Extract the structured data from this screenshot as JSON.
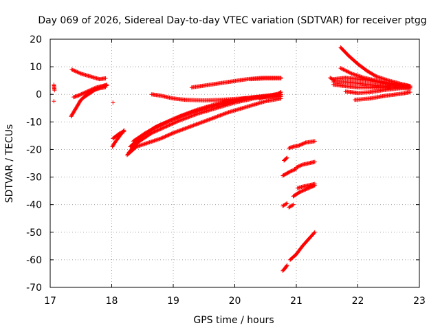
{
  "chart_data": {
    "type": "scatter",
    "title": "Day 069 of 2026, Sidereal Day-to-day VTEC variation (SDTVAR) for receiver ptgg",
    "xlabel": "GPS time / hours",
    "ylabel": "SDTVAR / TECUs",
    "xlim": [
      17,
      23
    ],
    "ylim": [
      -70,
      20
    ],
    "xticks": [
      "17",
      "18",
      "19",
      "20",
      "21",
      "22",
      "23"
    ],
    "yticks": [
      "20",
      "10",
      "0",
      "-10",
      "-20",
      "-30",
      "-40",
      "-50",
      "-60",
      "-70"
    ],
    "grid": true,
    "marker": "+",
    "color": "#ff0000",
    "segments": [
      {
        "x": [
          17.06,
          17.07
        ],
        "y": [
          3.5,
          1.5
        ]
      },
      {
        "x": [
          17.06
        ],
        "y": [
          -2.5
        ]
      },
      {
        "x": [
          17.35,
          17.5,
          17.65,
          17.8,
          17.9
        ],
        "y": [
          9,
          7.5,
          6.5,
          5.5,
          5.8
        ]
      },
      {
        "x": [
          17.34,
          17.42,
          17.5,
          17.6,
          17.7,
          17.8,
          17.9
        ],
        "y": [
          -8,
          -5,
          -2,
          0,
          1.5,
          2.2,
          2.6
        ]
      },
      {
        "x": [
          17.38,
          17.45,
          17.55,
          17.65,
          17.75,
          17.85,
          17.92
        ],
        "y": [
          -1,
          -0.5,
          0.5,
          1.5,
          2.5,
          3.0,
          3.5
        ]
      },
      {
        "x": [
          17.55,
          17.65,
          17.75,
          17.85,
          17.92
        ],
        "y": [
          -1,
          0.5,
          2,
          3,
          3.2
        ]
      },
      {
        "x": [
          18.02
        ],
        "y": [
          -3
        ]
      },
      {
        "x": [
          18.01,
          18.05,
          18.1,
          18.15,
          18.2
        ],
        "y": [
          -19,
          -17.5,
          -16,
          -14.5,
          -13
        ]
      },
      {
        "x": [
          18.02,
          18.08,
          18.14,
          18.2
        ],
        "y": [
          -16,
          -15,
          -14,
          -13.5
        ]
      },
      {
        "x": [
          18.25,
          18.4,
          18.6,
          18.8,
          19.0,
          19.3,
          19.6,
          19.9,
          20.2,
          20.5,
          20.75
        ],
        "y": [
          -22,
          -19,
          -17.5,
          -16,
          -14,
          -11.5,
          -9,
          -6.5,
          -4.5,
          -2.5,
          -1.5
        ]
      },
      {
        "x": [
          18.28,
          18.45,
          18.65,
          18.85,
          19.1,
          19.4,
          19.7,
          20.0,
          20.3,
          20.6,
          20.75
        ],
        "y": [
          -21,
          -17,
          -14,
          -12,
          -9.5,
          -7,
          -5,
          -3,
          -1.5,
          -0.5,
          0
        ]
      },
      {
        "x": [
          18.3,
          18.5,
          18.7,
          18.9,
          19.1,
          19.4,
          19.7,
          20.0,
          20.3,
          20.6,
          20.75
        ],
        "y": [
          -19,
          -15,
          -12,
          -10,
          -8,
          -5.5,
          -3.5,
          -2,
          -1,
          -0.5,
          -0.2
        ]
      },
      {
        "x": [
          18.35,
          18.55,
          18.75,
          19.0,
          19.3,
          19.6,
          19.9,
          20.2,
          20.5,
          20.75
        ],
        "y": [
          -17,
          -14,
          -11.5,
          -9,
          -6.5,
          -4.5,
          -3,
          -1.5,
          -0.5,
          0
        ]
      },
      {
        "x": [
          18.65,
          18.8,
          19.0,
          19.2,
          19.5,
          19.8,
          20.1,
          20.4,
          20.75
        ],
        "y": [
          0,
          -0.5,
          -1.5,
          -2,
          -2.2,
          -2,
          -1.5,
          -1,
          -0.8
        ]
      },
      {
        "x": [
          19.3,
          19.6,
          19.9,
          20.2,
          20.45,
          20.75
        ],
        "y": [
          2.5,
          3.5,
          4.5,
          5.5,
          6,
          6
        ]
      },
      {
        "x": [
          20.25,
          20.5,
          20.75
        ],
        "y": [
          5.5,
          5.8,
          5.8
        ]
      },
      {
        "x": [
          20.4,
          20.55,
          20.7,
          20.75
        ],
        "y": [
          -1.5,
          -0.5,
          0.2,
          0.8
        ]
      },
      {
        "x": [
          20.78,
          20.82,
          20.85
        ],
        "y": [
          -64,
          -63,
          -62
        ]
      },
      {
        "x": [
          20.9,
          21.0,
          21.1,
          21.2,
          21.3
        ],
        "y": [
          -60,
          -58,
          -55,
          -52.5,
          -50
        ]
      },
      {
        "x": [
          20.78,
          20.85
        ],
        "y": [
          -40.5,
          -39.5
        ]
      },
      {
        "x": [
          20.88,
          20.95
        ],
        "y": [
          -41,
          -40
        ]
      },
      {
        "x": [
          20.95,
          21.05,
          21.15,
          21.25,
          21.3
        ],
        "y": [
          -37,
          -35.5,
          -34.5,
          -33.5,
          -33
        ]
      },
      {
        "x": [
          21.02,
          21.1,
          21.2,
          21.3
        ],
        "y": [
          -34,
          -33.5,
          -33,
          -32.5
        ]
      },
      {
        "x": [
          20.78,
          20.9,
          21.0
        ],
        "y": [
          -29.5,
          -28,
          -27
        ]
      },
      {
        "x": [
          21.0,
          21.1,
          21.2,
          21.3
        ],
        "y": [
          -26.5,
          -25.5,
          -25,
          -24.5
        ]
      },
      {
        "x": [
          20.8,
          20.85
        ],
        "y": [
          -24,
          -23
        ]
      },
      {
        "x": [
          20.88,
          20.95,
          21.05,
          21.15,
          21.3
        ],
        "y": [
          -19.5,
          -19,
          -18.5,
          -17.5,
          -17
        ]
      },
      {
        "x": [
          21.55,
          21.62
        ],
        "y": [
          6,
          5
        ]
      },
      {
        "x": [
          21.72,
          21.85,
          22.0,
          22.15,
          22.3,
          22.5,
          22.7,
          22.85
        ],
        "y": [
          17,
          14,
          11,
          8.5,
          6.5,
          5,
          3.8,
          3
        ]
      },
      {
        "x": [
          21.72,
          21.9,
          22.1,
          22.3,
          22.5,
          22.7,
          22.85
        ],
        "y": [
          9.5,
          7.5,
          6,
          5,
          4.2,
          3.5,
          3
        ]
      },
      {
        "x": [
          21.6,
          21.8,
          22.0,
          22.2,
          22.4,
          22.6,
          22.85
        ],
        "y": [
          5.5,
          6,
          5.5,
          5,
          4,
          3.2,
          2.5
        ]
      },
      {
        "x": [
          21.6,
          21.8,
          22.0,
          22.2,
          22.4,
          22.6,
          22.85
        ],
        "y": [
          4.5,
          4.5,
          4,
          3.5,
          3,
          2.5,
          2
        ]
      },
      {
        "x": [
          21.6,
          21.8,
          22.0,
          22.2,
          22.4,
          22.6,
          22.85
        ],
        "y": [
          3.5,
          3,
          2.5,
          2.5,
          2.5,
          2.8,
          3
        ]
      },
      {
        "x": [
          21.8,
          22.0,
          22.2,
          22.4,
          22.6,
          22.85
        ],
        "y": [
          1,
          0.5,
          0.8,
          1.5,
          2,
          2.5
        ]
      },
      {
        "x": [
          21.95,
          22.2,
          22.45,
          22.7,
          22.85
        ],
        "y": [
          -2,
          -1.5,
          -0.5,
          0.2,
          0.8
        ]
      }
    ]
  }
}
